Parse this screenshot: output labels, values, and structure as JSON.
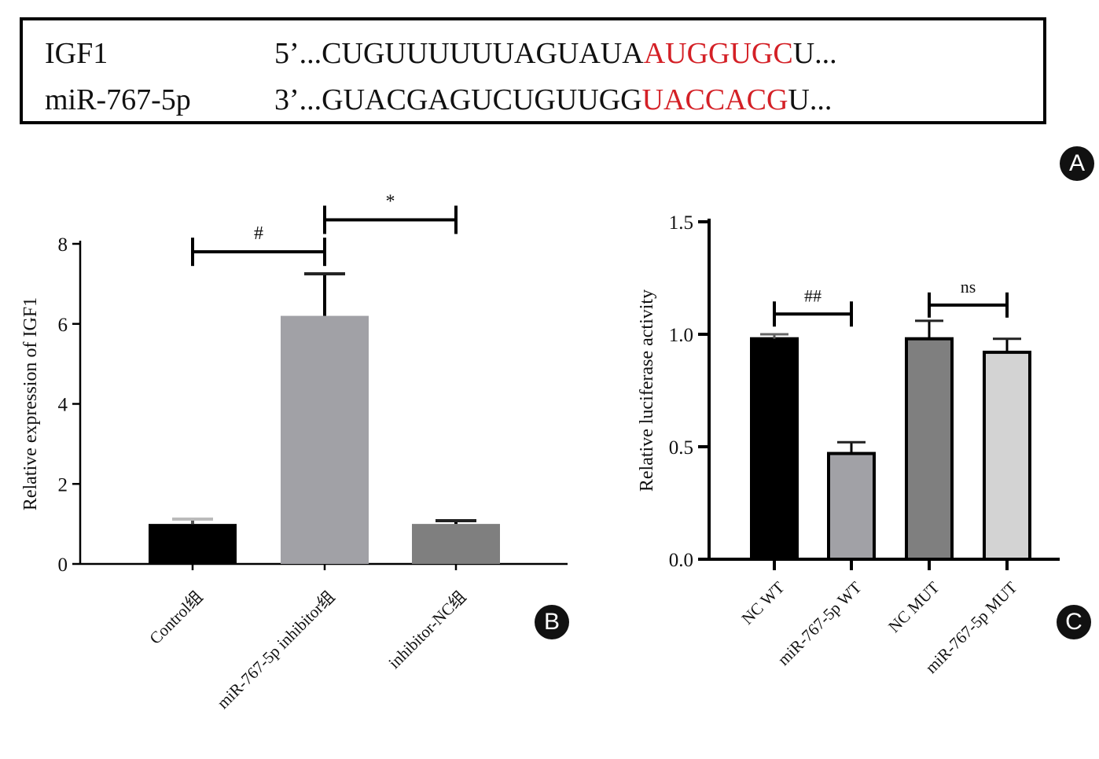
{
  "panel_a": {
    "rows": [
      {
        "name": "IGF1",
        "prefix": "5’...CUGUUUUUUAGUAUA",
        "highlight": "AUGGUGC",
        "suffix": "U..."
      },
      {
        "name": "miR-767-5p",
        "prefix": "3’...GUACGAGUCUGUUGG",
        "highlight": "UACCACG",
        "suffix": "U..."
      }
    ],
    "label": "A"
  },
  "panel_b_label": "B",
  "panel_c_label": "C",
  "colors": {
    "highlight": "#d42026"
  },
  "chart_data": [
    {
      "type": "bar",
      "panel": "B",
      "categories": [
        "Control组",
        "miR-767-5p inhibitor组",
        "inhibitor-NC组"
      ],
      "values": [
        1.0,
        6.2,
        1.0
      ],
      "errors": [
        0.12,
        1.05,
        0.08
      ],
      "bar_colors": [
        "#000000",
        "#a1a1a6",
        "#7f7f7f"
      ],
      "ylabel": "Relative expression of IGF1",
      "ylim": [
        0,
        8
      ],
      "yticks": [
        0,
        2,
        4,
        6,
        8
      ],
      "ytick_labels": [
        "0",
        "2",
        "4",
        "6",
        "8"
      ],
      "significance": [
        {
          "from": 0,
          "to": 1,
          "label": "#",
          "y": 7.8
        },
        {
          "from": 1,
          "to": 2,
          "label": "*",
          "y": 8.6
        }
      ]
    },
    {
      "type": "bar",
      "panel": "C",
      "categories": [
        "NC WT",
        "miR-767-5p WT",
        "NC MUT",
        "miR-767-5p MUT"
      ],
      "values": [
        0.98,
        0.47,
        0.98,
        0.92
      ],
      "errors": [
        0.02,
        0.05,
        0.08,
        0.06
      ],
      "bar_colors": [
        "#000000",
        "#a1a1a6",
        "#7f7f7f",
        "#d3d3d3"
      ],
      "ylabel": "Relative luciferase activity",
      "ylim": [
        0,
        1.5
      ],
      "yticks": [
        0,
        0.5,
        1.0,
        1.5
      ],
      "ytick_labels": [
        "0.0",
        "0.5",
        "1.0",
        "1.5"
      ],
      "significance": [
        {
          "from": 0,
          "to": 1,
          "label": "##",
          "y": 1.09
        },
        {
          "from": 2,
          "to": 3,
          "label": "ns",
          "y": 1.13
        }
      ]
    }
  ]
}
